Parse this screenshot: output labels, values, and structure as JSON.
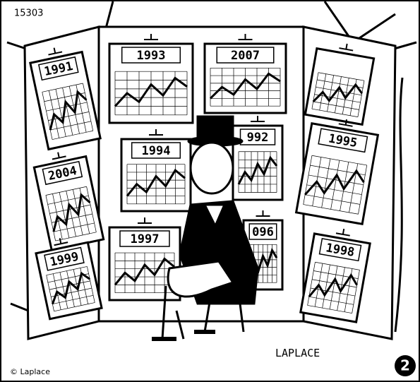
{
  "id": "15303",
  "panels": [
    {
      "label": "1991"
    },
    {
      "label": "2004"
    },
    {
      "label": "1999"
    },
    {
      "label": "1993"
    },
    {
      "label": "2007"
    },
    {
      "label": "1994"
    },
    {
      "label": "992"
    },
    {
      "label": "1997"
    },
    {
      "label": "096"
    },
    {
      "label": "1995"
    },
    {
      "label": "1998"
    }
  ],
  "signature": "LAPLACE",
  "copyright": "© Laplace",
  "badge": "2"
}
